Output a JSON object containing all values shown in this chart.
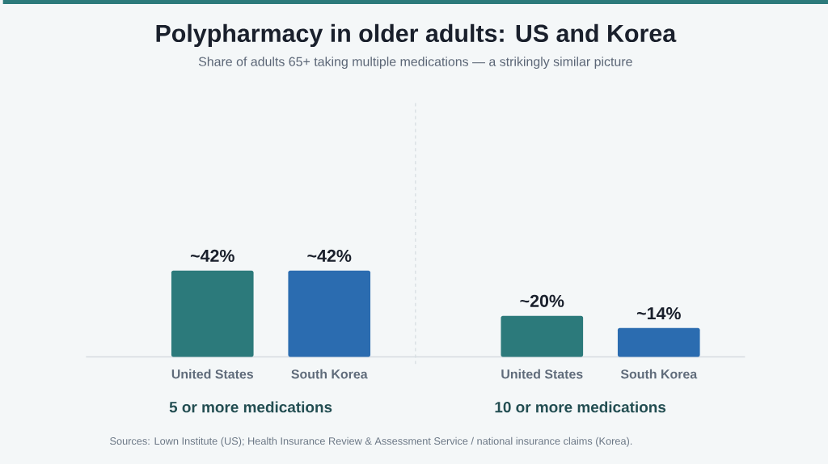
{
  "chart_data": [
    {
      "type": "bar",
      "title": "Polypharmacy in older adults: US and Korea",
      "subtitle": "Share of adults 65+ taking multiple medications — a strikingly similar picture",
      "categories": [
        "United States",
        "South Korea"
      ],
      "values": [
        42,
        42
      ],
      "colors": [
        "#2c7a7b",
        "#2b6cb0"
      ],
      "value_labels": [
        "~42%",
        "~42%"
      ],
      "xlabel": "5 or more medications",
      "annotations": [
        "Sources: Lown Institute (US); Health Insurance Review & Assessment Service / national insurance claims (Korea)."
      ]
    },
    {
      "type": "bar",
      "categories": [
        "United States",
        "South Korea"
      ],
      "values": [
        20,
        14
      ],
      "colors": [
        "#2c7a7b",
        "#2b6cb0"
      ],
      "value_labels": [
        "~20%",
        "~14%"
      ],
      "xlabel": "10 or more medications"
    }
  ]
}
